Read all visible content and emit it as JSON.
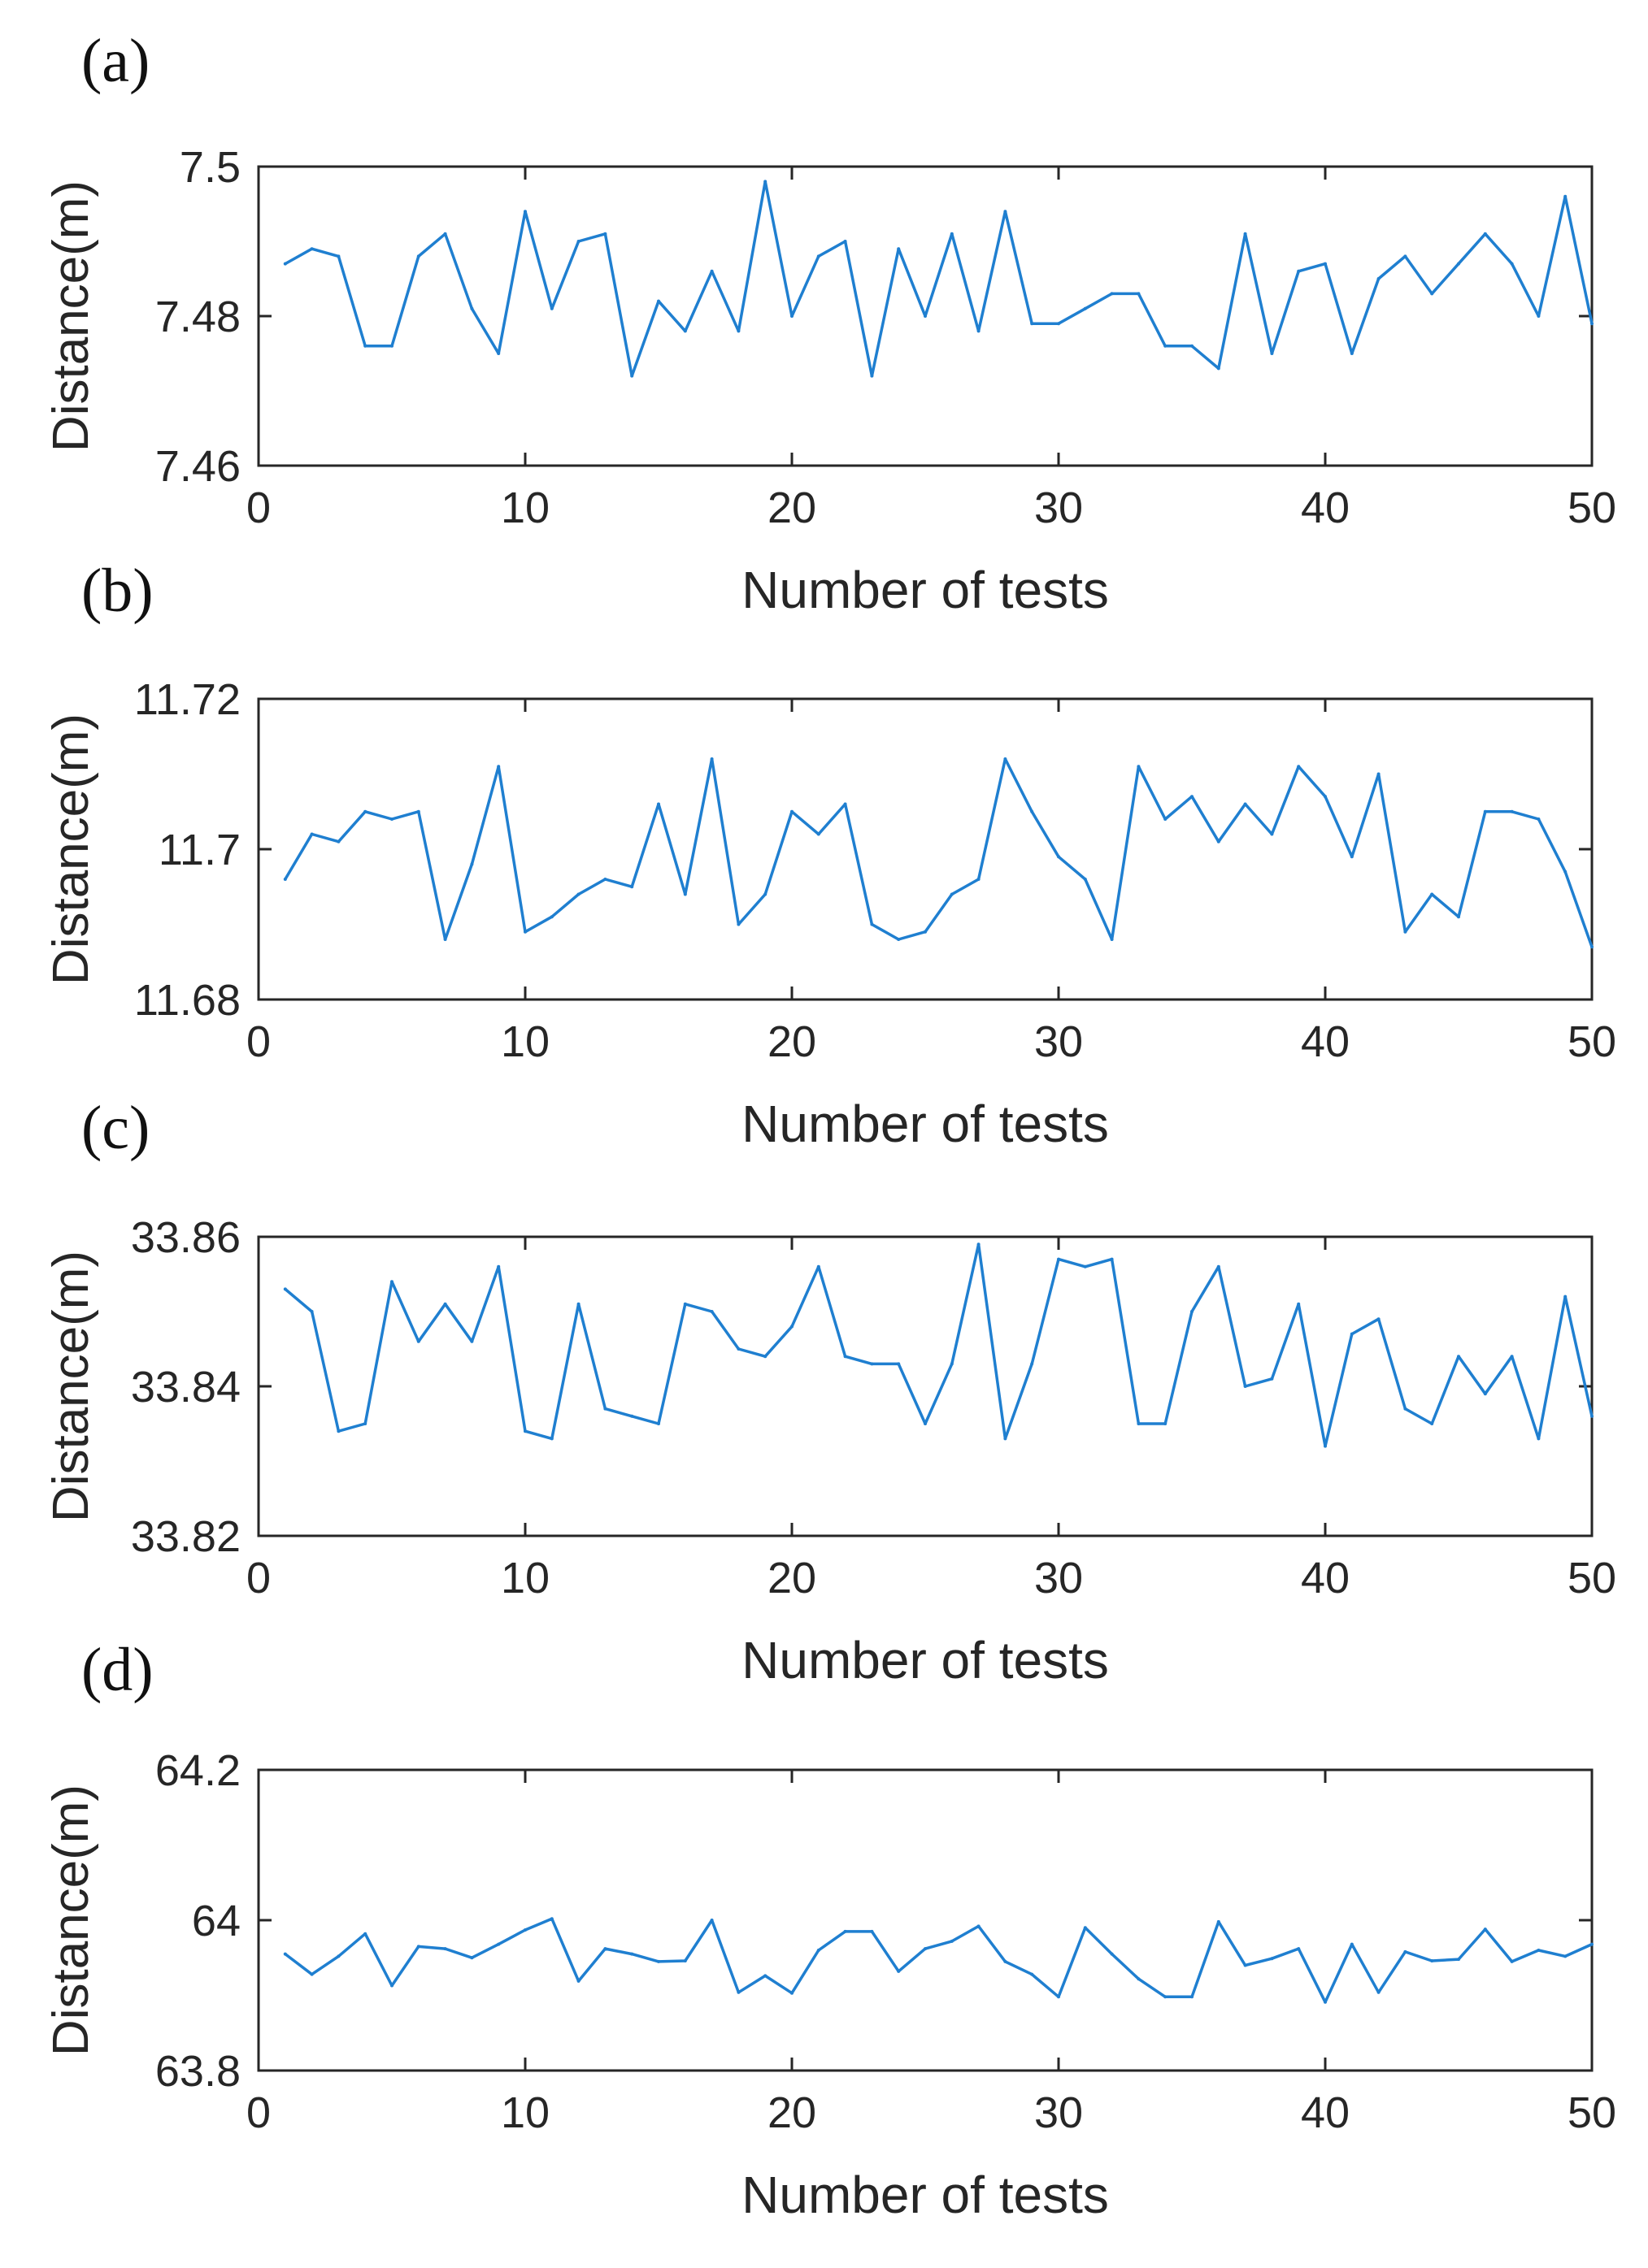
{
  "chart_data": [
    {
      "type": "line",
      "panel_label": "(a)",
      "xlabel": "Number of tests",
      "ylabel": "Distance(m)",
      "xlim": [
        0,
        50
      ],
      "ylim": [
        7.46,
        7.5
      ],
      "xticks": [
        0,
        10,
        20,
        30,
        40,
        50
      ],
      "yticks": [
        7.46,
        7.48,
        7.5
      ],
      "ytick_labels": [
        "7.46",
        "7.48",
        "7.5"
      ],
      "color": "#1f7fd0",
      "x": [
        1,
        2,
        3,
        4,
        5,
        6,
        7,
        8,
        9,
        10,
        11,
        12,
        13,
        14,
        15,
        16,
        17,
        18,
        19,
        20,
        21,
        22,
        23,
        24,
        25,
        26,
        27,
        28,
        29,
        30,
        31,
        32,
        33,
        34,
        35,
        36,
        37,
        38,
        39,
        40,
        41,
        42,
        43,
        44,
        45,
        46,
        47,
        48,
        49,
        50
      ],
      "values": [
        7.487,
        7.489,
        7.488,
        7.476,
        7.476,
        7.488,
        7.491,
        7.481,
        7.475,
        7.494,
        7.481,
        7.49,
        7.491,
        7.472,
        7.482,
        7.478,
        7.486,
        7.478,
        7.498,
        7.48,
        7.488,
        7.49,
        7.472,
        7.489,
        7.48,
        7.491,
        7.478,
        7.494,
        7.479,
        7.479,
        7.481,
        7.483,
        7.483,
        7.476,
        7.476,
        7.473,
        7.491,
        7.475,
        7.486,
        7.487,
        7.475,
        7.485,
        7.488,
        7.483,
        7.487,
        7.491,
        7.487,
        7.48,
        7.496,
        7.479
      ]
    },
    {
      "type": "line",
      "panel_label": "(b)",
      "xlabel": "Number of tests",
      "ylabel": "Distance(m)",
      "xlim": [
        0,
        50
      ],
      "ylim": [
        11.68,
        11.72
      ],
      "xticks": [
        0,
        10,
        20,
        30,
        40,
        50
      ],
      "yticks": [
        11.68,
        11.7,
        11.72
      ],
      "ytick_labels": [
        "11.68",
        "11.7",
        "11.72"
      ],
      "color": "#1f7fd0",
      "x": [
        1,
        2,
        3,
        4,
        5,
        6,
        7,
        8,
        9,
        10,
        11,
        12,
        13,
        14,
        15,
        16,
        17,
        18,
        19,
        20,
        21,
        22,
        23,
        24,
        25,
        26,
        27,
        28,
        29,
        30,
        31,
        32,
        33,
        34,
        35,
        36,
        37,
        38,
        39,
        40,
        41,
        42,
        43,
        44,
        45,
        46,
        47,
        48,
        49,
        50
      ],
      "values": [
        11.696,
        11.702,
        11.701,
        11.705,
        11.704,
        11.705,
        11.688,
        11.698,
        11.711,
        11.689,
        11.691,
        11.694,
        11.696,
        11.695,
        11.706,
        11.694,
        11.712,
        11.69,
        11.694,
        11.705,
        11.702,
        11.706,
        11.69,
        11.688,
        11.689,
        11.694,
        11.696,
        11.712,
        11.705,
        11.699,
        11.696,
        11.688,
        11.711,
        11.704,
        11.707,
        11.701,
        11.706,
        11.702,
        11.711,
        11.707,
        11.699,
        11.71,
        11.689,
        11.694,
        11.691,
        11.705,
        11.705,
        11.704,
        11.697,
        11.687
      ]
    },
    {
      "type": "line",
      "panel_label": "(c)",
      "xlabel": "Number of tests",
      "ylabel": "Distance(m)",
      "xlim": [
        0,
        50
      ],
      "ylim": [
        33.82,
        33.86
      ],
      "xticks": [
        0,
        10,
        20,
        30,
        40,
        50
      ],
      "yticks": [
        33.82,
        33.84,
        33.86
      ],
      "ytick_labels": [
        "33.82",
        "33.84",
        "33.86"
      ],
      "color": "#1f7fd0",
      "x": [
        1,
        2,
        3,
        4,
        5,
        6,
        7,
        8,
        9,
        10,
        11,
        12,
        13,
        14,
        15,
        16,
        17,
        18,
        19,
        20,
        21,
        22,
        23,
        24,
        25,
        26,
        27,
        28,
        29,
        30,
        31,
        32,
        33,
        34,
        35,
        36,
        37,
        38,
        39,
        40,
        41,
        42,
        43,
        44,
        45,
        46,
        47,
        48,
        49,
        50
      ],
      "values": [
        33.853,
        33.85,
        33.834,
        33.835,
        33.854,
        33.846,
        33.851,
        33.846,
        33.856,
        33.834,
        33.833,
        33.851,
        33.837,
        33.836,
        33.835,
        33.851,
        33.85,
        33.845,
        33.844,
        33.848,
        33.856,
        33.844,
        33.843,
        33.843,
        33.835,
        33.843,
        33.859,
        33.833,
        33.843,
        33.857,
        33.856,
        33.857,
        33.835,
        33.835,
        33.85,
        33.856,
        33.84,
        33.841,
        33.851,
        33.832,
        33.847,
        33.849,
        33.837,
        33.835,
        33.844,
        33.839,
        33.844,
        33.833,
        33.852,
        33.836
      ]
    },
    {
      "type": "line",
      "panel_label": "(d)",
      "xlabel": "Number of tests",
      "ylabel": "Distance(m)",
      "xlim": [
        0,
        50
      ],
      "ylim": [
        63.8,
        64.2
      ],
      "xticks": [
        0,
        10,
        20,
        30,
        40,
        50
      ],
      "yticks": [
        63.8,
        64.0,
        64.2
      ],
      "ytick_labels": [
        "63.8",
        "64",
        "64.2"
      ],
      "color": "#1f7fd0",
      "x": [
        1,
        2,
        3,
        4,
        5,
        6,
        7,
        8,
        9,
        10,
        11,
        12,
        13,
        14,
        15,
        16,
        17,
        18,
        19,
        20,
        21,
        22,
        23,
        24,
        25,
        26,
        27,
        28,
        29,
        30,
        31,
        32,
        33,
        34,
        35,
        36,
        37,
        38,
        39,
        40,
        41,
        42,
        43,
        44,
        45,
        46,
        47,
        48,
        49,
        50
      ],
      "values": [
        63.955,
        63.928,
        63.952,
        63.982,
        63.913,
        63.965,
        63.962,
        63.95,
        63.968,
        63.987,
        64.002,
        63.919,
        63.962,
        63.955,
        63.945,
        63.946,
        64.0,
        63.904,
        63.926,
        63.903,
        63.96,
        63.985,
        63.985,
        63.932,
        63.962,
        63.972,
        63.992,
        63.945,
        63.928,
        63.898,
        63.99,
        63.955,
        63.922,
        63.898,
        63.898,
        63.998,
        63.94,
        63.949,
        63.962,
        63.891,
        63.968,
        63.904,
        63.958,
        63.946,
        63.948,
        63.988,
        63.945,
        63.96,
        63.952,
        63.968
      ]
    }
  ]
}
